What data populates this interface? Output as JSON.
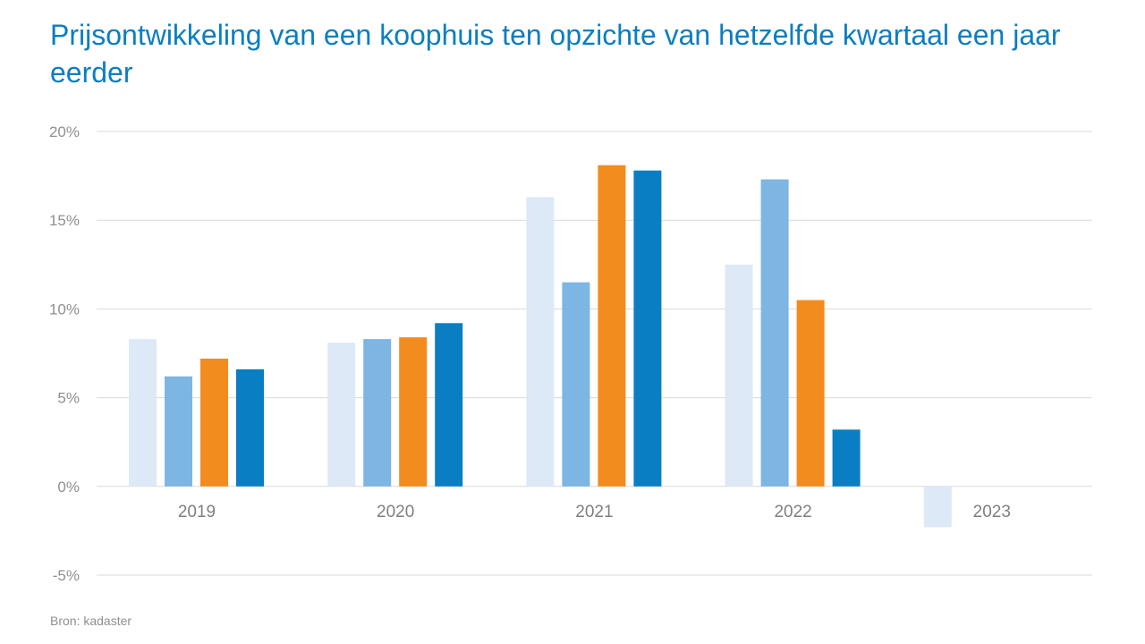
{
  "chart_data": {
    "type": "bar",
    "title": "Prijsontwikkeling van een koophuis ten opzichte van hetzelfde kwartaal een jaar eerder",
    "categories": [
      "2019",
      "2020",
      "2021",
      "2022",
      "2023"
    ],
    "series": [
      {
        "values": [
          8.3,
          8.1,
          16.3,
          12.5,
          -2.3
        ],
        "color": "#dde9f6"
      },
      {
        "values": [
          6.2,
          8.3,
          11.5,
          17.3,
          null
        ],
        "color": "#7db5e3"
      },
      {
        "values": [
          7.2,
          8.4,
          18.1,
          10.5,
          null
        ],
        "color": "#f28c1e"
      },
      {
        "values": [
          6.6,
          9.2,
          17.8,
          3.2,
          null
        ],
        "color": "#0a7ec2"
      }
    ],
    "yticks": [
      "20%",
      "15%",
      "10%",
      "5%",
      "0%",
      "-5%"
    ],
    "ylim": [
      -5,
      20
    ],
    "grid": true,
    "source": "Bron: kadaster"
  }
}
